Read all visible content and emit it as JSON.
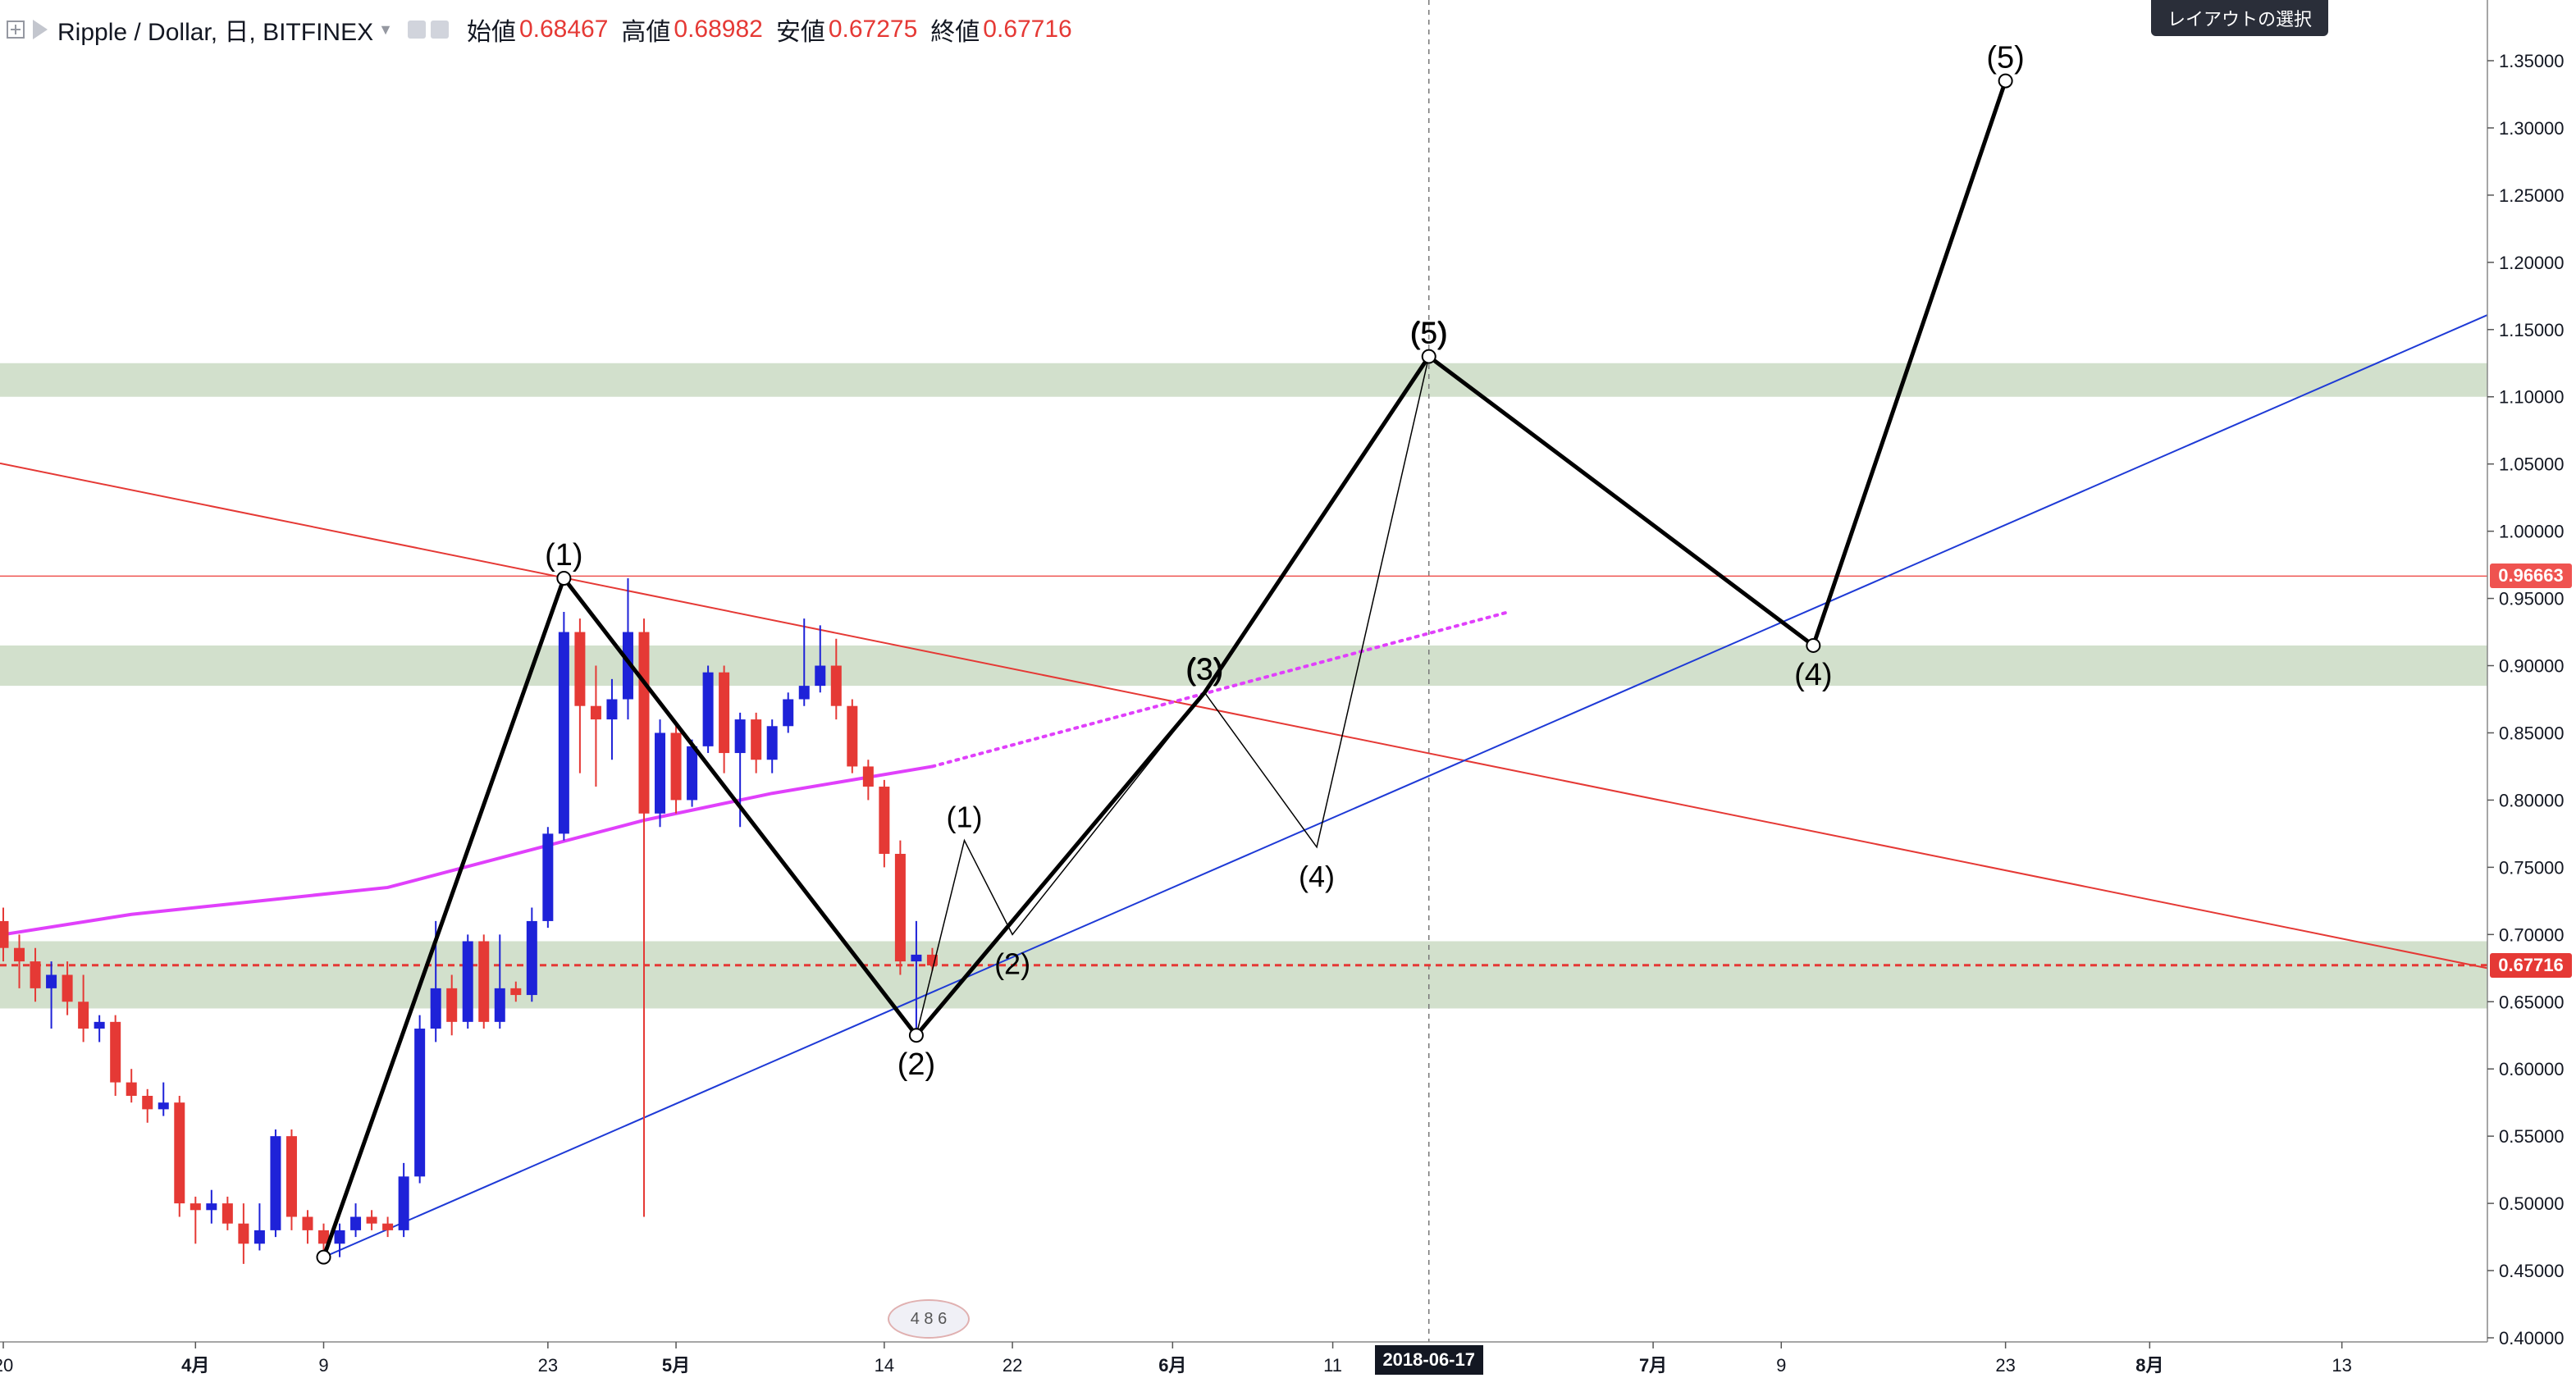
{
  "header": {
    "symbol": "Ripple / Dollar, 日, BITFINEX",
    "open_label": "始値",
    "open_value": "0.68467",
    "high_label": "高値",
    "high_value": "0.68982",
    "low_label": "安値",
    "low_value": "0.67275",
    "close_label": "終値",
    "close_value": "0.67716"
  },
  "layout_button_label": "レイアウトの選択",
  "badges": {
    "last_price": "0.67716",
    "hline_price": "0.96663",
    "crosshair_date": "2018-06-17",
    "last_price_color": "#e53935",
    "hline_color": "#ef5350"
  },
  "watermark_text": "4 8 6",
  "colors": {
    "up": "#1e22d8",
    "down": "#e53935",
    "ma": "#e040fb",
    "trend_blue": "#1e3ad6",
    "trend_red": "#e53935",
    "zone": "#d2e0cc",
    "wave": "#000000"
  },
  "chart_data": {
    "type": "candlestick",
    "symbol": "XRP/USD",
    "timeframe": "1D",
    "ylim": [
      0.4,
      1.38
    ],
    "y_ticks": [
      0.4,
      0.45,
      0.5,
      0.55,
      0.6,
      0.65,
      0.7,
      0.75,
      0.8,
      0.85,
      0.9,
      0.95,
      1.0,
      1.05,
      1.1,
      1.15,
      1.2,
      1.25,
      1.3,
      1.35
    ],
    "x_tick_labels": [
      {
        "date": "2018-03-20",
        "label": "20"
      },
      {
        "date": "2018-04-01",
        "label": "4月"
      },
      {
        "date": "2018-04-09",
        "label": "9"
      },
      {
        "date": "2018-04-23",
        "label": "23"
      },
      {
        "date": "2018-05-01",
        "label": "5月"
      },
      {
        "date": "2018-05-14",
        "label": "14"
      },
      {
        "date": "2018-05-22",
        "label": "22"
      },
      {
        "date": "2018-06-01",
        "label": "6月"
      },
      {
        "date": "2018-06-11",
        "label": "11"
      },
      {
        "date": "2018-07-01",
        "label": "7月"
      },
      {
        "date": "2018-07-09",
        "label": "9"
      },
      {
        "date": "2018-07-23",
        "label": "23"
      },
      {
        "date": "2018-08-01",
        "label": "8月"
      },
      {
        "date": "2018-08-13",
        "label": "13"
      }
    ],
    "candles": [
      {
        "date": "2018-03-20",
        "o": 0.71,
        "h": 0.72,
        "l": 0.68,
        "c": 0.69
      },
      {
        "date": "2018-03-21",
        "o": 0.69,
        "h": 0.7,
        "l": 0.66,
        "c": 0.68
      },
      {
        "date": "2018-03-22",
        "o": 0.68,
        "h": 0.69,
        "l": 0.65,
        "c": 0.66
      },
      {
        "date": "2018-03-23",
        "o": 0.66,
        "h": 0.68,
        "l": 0.63,
        "c": 0.67
      },
      {
        "date": "2018-03-24",
        "o": 0.67,
        "h": 0.68,
        "l": 0.64,
        "c": 0.65
      },
      {
        "date": "2018-03-25",
        "o": 0.65,
        "h": 0.67,
        "l": 0.62,
        "c": 0.63
      },
      {
        "date": "2018-03-26",
        "o": 0.63,
        "h": 0.64,
        "l": 0.62,
        "c": 0.635
      },
      {
        "date": "2018-03-27",
        "o": 0.635,
        "h": 0.64,
        "l": 0.58,
        "c": 0.59
      },
      {
        "date": "2018-03-28",
        "o": 0.59,
        "h": 0.6,
        "l": 0.575,
        "c": 0.58
      },
      {
        "date": "2018-03-29",
        "o": 0.58,
        "h": 0.585,
        "l": 0.56,
        "c": 0.57
      },
      {
        "date": "2018-03-30",
        "o": 0.57,
        "h": 0.59,
        "l": 0.565,
        "c": 0.575
      },
      {
        "date": "2018-03-31",
        "o": 0.575,
        "h": 0.58,
        "l": 0.49,
        "c": 0.5
      },
      {
        "date": "2018-04-01",
        "o": 0.5,
        "h": 0.505,
        "l": 0.47,
        "c": 0.495
      },
      {
        "date": "2018-04-02",
        "o": 0.495,
        "h": 0.51,
        "l": 0.485,
        "c": 0.5
      },
      {
        "date": "2018-04-03",
        "o": 0.5,
        "h": 0.505,
        "l": 0.48,
        "c": 0.485
      },
      {
        "date": "2018-04-04",
        "o": 0.485,
        "h": 0.5,
        "l": 0.455,
        "c": 0.47
      },
      {
        "date": "2018-04-05",
        "o": 0.47,
        "h": 0.5,
        "l": 0.465,
        "c": 0.48
      },
      {
        "date": "2018-04-06",
        "o": 0.48,
        "h": 0.555,
        "l": 0.475,
        "c": 0.55
      },
      {
        "date": "2018-04-07",
        "o": 0.55,
        "h": 0.555,
        "l": 0.48,
        "c": 0.49
      },
      {
        "date": "2018-04-08",
        "o": 0.49,
        "h": 0.495,
        "l": 0.47,
        "c": 0.48
      },
      {
        "date": "2018-04-09",
        "o": 0.48,
        "h": 0.485,
        "l": 0.46,
        "c": 0.47
      },
      {
        "date": "2018-04-10",
        "o": 0.47,
        "h": 0.485,
        "l": 0.46,
        "c": 0.48
      },
      {
        "date": "2018-04-11",
        "o": 0.48,
        "h": 0.5,
        "l": 0.475,
        "c": 0.49
      },
      {
        "date": "2018-04-12",
        "o": 0.49,
        "h": 0.495,
        "l": 0.48,
        "c": 0.485
      },
      {
        "date": "2018-04-13",
        "o": 0.485,
        "h": 0.49,
        "l": 0.475,
        "c": 0.48
      },
      {
        "date": "2018-04-14",
        "o": 0.48,
        "h": 0.53,
        "l": 0.475,
        "c": 0.52
      },
      {
        "date": "2018-04-15",
        "o": 0.52,
        "h": 0.64,
        "l": 0.515,
        "c": 0.63
      },
      {
        "date": "2018-04-16",
        "o": 0.63,
        "h": 0.71,
        "l": 0.62,
        "c": 0.66
      },
      {
        "date": "2018-04-17",
        "o": 0.66,
        "h": 0.67,
        "l": 0.625,
        "c": 0.635
      },
      {
        "date": "2018-04-18",
        "o": 0.635,
        "h": 0.7,
        "l": 0.63,
        "c": 0.695
      },
      {
        "date": "2018-04-19",
        "o": 0.695,
        "h": 0.7,
        "l": 0.63,
        "c": 0.635
      },
      {
        "date": "2018-04-20",
        "o": 0.635,
        "h": 0.7,
        "l": 0.63,
        "c": 0.66
      },
      {
        "date": "2018-04-21",
        "o": 0.66,
        "h": 0.665,
        "l": 0.65,
        "c": 0.655
      },
      {
        "date": "2018-04-22",
        "o": 0.655,
        "h": 0.72,
        "l": 0.65,
        "c": 0.71
      },
      {
        "date": "2018-04-23",
        "o": 0.71,
        "h": 0.78,
        "l": 0.705,
        "c": 0.775
      },
      {
        "date": "2018-04-24",
        "o": 0.775,
        "h": 0.94,
        "l": 0.77,
        "c": 0.925
      },
      {
        "date": "2018-04-25",
        "o": 0.925,
        "h": 0.935,
        "l": 0.82,
        "c": 0.87
      },
      {
        "date": "2018-04-26",
        "o": 0.87,
        "h": 0.9,
        "l": 0.81,
        "c": 0.86
      },
      {
        "date": "2018-04-27",
        "o": 0.86,
        "h": 0.89,
        "l": 0.83,
        "c": 0.875
      },
      {
        "date": "2018-04-28",
        "o": 0.875,
        "h": 0.965,
        "l": 0.86,
        "c": 0.925
      },
      {
        "date": "2018-04-29",
        "o": 0.925,
        "h": 0.935,
        "l": 0.49,
        "c": 0.79
      },
      {
        "date": "2018-04-30",
        "o": 0.79,
        "h": 0.86,
        "l": 0.78,
        "c": 0.85
      },
      {
        "date": "2018-05-01",
        "o": 0.85,
        "h": 0.855,
        "l": 0.79,
        "c": 0.8
      },
      {
        "date": "2018-05-02",
        "o": 0.8,
        "h": 0.845,
        "l": 0.795,
        "c": 0.84
      },
      {
        "date": "2018-05-03",
        "o": 0.84,
        "h": 0.9,
        "l": 0.835,
        "c": 0.895
      },
      {
        "date": "2018-05-04",
        "o": 0.895,
        "h": 0.9,
        "l": 0.82,
        "c": 0.835
      },
      {
        "date": "2018-05-05",
        "o": 0.835,
        "h": 0.865,
        "l": 0.78,
        "c": 0.86
      },
      {
        "date": "2018-05-06",
        "o": 0.86,
        "h": 0.865,
        "l": 0.82,
        "c": 0.83
      },
      {
        "date": "2018-05-07",
        "o": 0.83,
        "h": 0.86,
        "l": 0.82,
        "c": 0.855
      },
      {
        "date": "2018-05-08",
        "o": 0.855,
        "h": 0.88,
        "l": 0.85,
        "c": 0.875
      },
      {
        "date": "2018-05-09",
        "o": 0.875,
        "h": 0.935,
        "l": 0.87,
        "c": 0.885
      },
      {
        "date": "2018-05-10",
        "o": 0.885,
        "h": 0.93,
        "l": 0.88,
        "c": 0.9
      },
      {
        "date": "2018-05-11",
        "o": 0.9,
        "h": 0.92,
        "l": 0.86,
        "c": 0.87
      },
      {
        "date": "2018-05-12",
        "o": 0.87,
        "h": 0.875,
        "l": 0.82,
        "c": 0.825
      },
      {
        "date": "2018-05-13",
        "o": 0.825,
        "h": 0.83,
        "l": 0.8,
        "c": 0.81
      },
      {
        "date": "2018-05-14",
        "o": 0.81,
        "h": 0.815,
        "l": 0.75,
        "c": 0.76
      },
      {
        "date": "2018-05-15",
        "o": 0.76,
        "h": 0.77,
        "l": 0.67,
        "c": 0.68
      },
      {
        "date": "2018-05-16",
        "o": 0.68,
        "h": 0.71,
        "l": 0.625,
        "c": 0.685
      },
      {
        "date": "2018-05-17",
        "o": 0.685,
        "h": 0.69,
        "l": 0.673,
        "c": 0.677
      }
    ],
    "sma_line": {
      "color": "#e040fb",
      "points": [
        {
          "date": "2018-03-20",
          "v": 0.7
        },
        {
          "date": "2018-03-28",
          "v": 0.715
        },
        {
          "date": "2018-04-05",
          "v": 0.725
        },
        {
          "date": "2018-04-13",
          "v": 0.735
        },
        {
          "date": "2018-04-21",
          "v": 0.76
        },
        {
          "date": "2018-04-29",
          "v": 0.785
        },
        {
          "date": "2018-05-07",
          "v": 0.805
        },
        {
          "date": "2018-05-17",
          "v": 0.825
        }
      ],
      "projection_end": {
        "date": "2018-06-22",
        "v": 0.94
      }
    },
    "zones": [
      {
        "from": 1.1,
        "to": 1.125
      },
      {
        "from": 0.885,
        "to": 0.915
      },
      {
        "from": 0.645,
        "to": 0.695
      }
    ],
    "hlines": [
      {
        "v": 0.96663,
        "color": "#ef5350",
        "style": "solid"
      },
      {
        "v": 0.67716,
        "color": "#e53935",
        "style": "dashed"
      }
    ],
    "trendlines": [
      {
        "color": "#e53935",
        "p1": {
          "date": "2018-03-20",
          "v": 1.05
        },
        "p2": {
          "date": "2018-08-20",
          "v": 0.68
        }
      },
      {
        "color": "#1e3ad6",
        "p1": {
          "date": "2018-04-09",
          "v": 0.46
        },
        "p2": {
          "date": "2018-08-20",
          "v": 1.15
        }
      }
    ],
    "crosshair_date": "2018-06-17",
    "wave_main": {
      "points": [
        {
          "date": "2018-04-09",
          "v": 0.46,
          "label": ""
        },
        {
          "date": "2018-04-24",
          "v": 0.965,
          "label": "(1)"
        },
        {
          "date": "2018-05-16",
          "v": 0.625,
          "label": "(2)"
        },
        {
          "date": "2018-06-03",
          "v": 0.88,
          "label": "(3)"
        },
        {
          "date": "2018-06-17",
          "v": 1.13,
          "label": "(5)"
        },
        {
          "date": "2018-07-11",
          "v": 0.915,
          "label": "(4)"
        },
        {
          "date": "2018-07-23",
          "v": 1.335,
          "label": "(5)"
        }
      ]
    },
    "wave_sub": {
      "points": [
        {
          "date": "2018-05-16",
          "v": 0.625,
          "label": ""
        },
        {
          "date": "2018-05-19",
          "v": 0.77,
          "label": "(1)"
        },
        {
          "date": "2018-05-22",
          "v": 0.7,
          "label": "(2)"
        },
        {
          "date": "2018-06-03",
          "v": 0.88,
          "label": "(3)"
        },
        {
          "date": "2018-06-10",
          "v": 0.765,
          "label": "(4)"
        },
        {
          "date": "2018-06-17",
          "v": 1.13,
          "label": "(5)"
        }
      ]
    }
  }
}
